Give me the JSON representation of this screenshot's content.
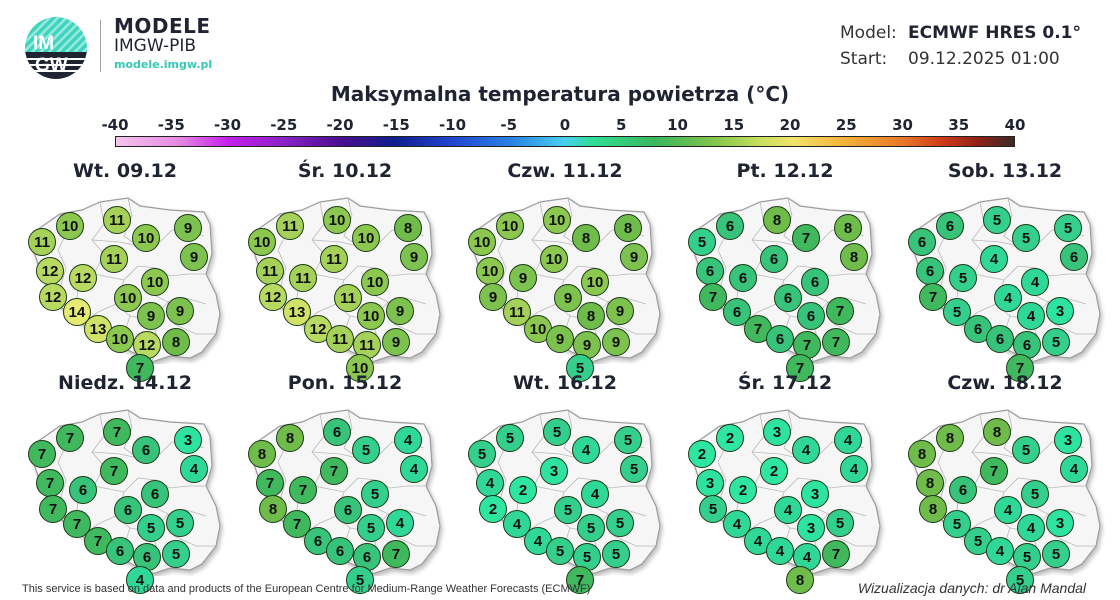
{
  "brand": {
    "logo_text_top": "IM",
    "logo_text_bottom": "GW",
    "title": "MODELE",
    "subtitle": "IMGW-PIB",
    "url": "modele.imgw.pl"
  },
  "meta": {
    "model_label": "Model:",
    "model_value": "ECMWF HRES 0.1°",
    "start_label": "Start:",
    "start_value": "09.12.2025 01:00"
  },
  "title": "Maksymalna temperatura powietrza (°C)",
  "colorbar": {
    "ticks": [
      "-40",
      "-35",
      "-30",
      "-25",
      "-20",
      "-15",
      "-10",
      "-5",
      "0",
      "5",
      "10",
      "15",
      "20",
      "25",
      "30",
      "35",
      "40"
    ],
    "min": -40,
    "max": 40
  },
  "station_positions": [
    [
      22,
      70
    ],
    [
      50,
      54
    ],
    [
      97,
      48
    ],
    [
      126,
      66
    ],
    [
      168,
      56
    ],
    [
      174,
      85
    ],
    [
      30,
      99
    ],
    [
      63,
      106
    ],
    [
      94,
      87
    ],
    [
      135,
      110
    ],
    [
      33,
      125
    ],
    [
      108,
      126
    ],
    [
      57,
      140
    ],
    [
      131,
      144
    ],
    [
      160,
      139
    ],
    [
      78,
      157
    ],
    [
      100,
      167
    ],
    [
      127,
      173
    ],
    [
      156,
      170
    ],
    [
      120,
      196
    ]
  ],
  "panels": [
    {
      "label": "Wt. 09.12",
      "values": [
        11,
        10,
        11,
        10,
        9,
        9,
        12,
        12,
        11,
        10,
        12,
        10,
        14,
        9,
        9,
        13,
        10,
        12,
        8,
        7
      ]
    },
    {
      "label": "Śr. 10.12",
      "values": [
        10,
        11,
        10,
        10,
        8,
        9,
        11,
        11,
        11,
        10,
        12,
        11,
        13,
        10,
        9,
        12,
        11,
        11,
        9,
        10
      ]
    },
    {
      "label": "Czw. 11.12",
      "values": [
        10,
        10,
        10,
        8,
        8,
        9,
        10,
        9,
        10,
        10,
        9,
        9,
        11,
        8,
        9,
        10,
        9,
        9,
        9,
        5
      ]
    },
    {
      "label": "Pt. 12.12",
      "values": [
        5,
        6,
        8,
        7,
        8,
        8,
        6,
        6,
        6,
        6,
        7,
        6,
        6,
        6,
        7,
        7,
        6,
        7,
        7,
        7
      ]
    },
    {
      "label": "Sob. 13.12",
      "values": [
        6,
        6,
        5,
        5,
        5,
        6,
        6,
        5,
        4,
        4,
        7,
        4,
        5,
        4,
        3,
        6,
        6,
        6,
        5,
        7
      ]
    },
    {
      "label": "Niedz. 14.12",
      "values": [
        7,
        7,
        7,
        6,
        3,
        4,
        7,
        6,
        7,
        6,
        7,
        6,
        7,
        5,
        5,
        7,
        6,
        6,
        5,
        4
      ]
    },
    {
      "label": "Pon. 15.12",
      "values": [
        8,
        8,
        6,
        5,
        4,
        4,
        7,
        7,
        7,
        5,
        8,
        6,
        7,
        5,
        4,
        6,
        6,
        6,
        7,
        5
      ]
    },
    {
      "label": "Wt. 16.12",
      "values": [
        5,
        5,
        5,
        4,
        5,
        5,
        4,
        2,
        3,
        4,
        2,
        5,
        4,
        5,
        5,
        4,
        5,
        5,
        5,
        7
      ]
    },
    {
      "label": "Śr. 17.12",
      "values": [
        2,
        2,
        3,
        4,
        4,
        4,
        3,
        2,
        2,
        3,
        5,
        4,
        4,
        3,
        5,
        4,
        4,
        4,
        7,
        8
      ]
    },
    {
      "label": "Czw. 18.12",
      "values": [
        8,
        8,
        8,
        5,
        3,
        4,
        8,
        6,
        7,
        5,
        8,
        4,
        5,
        4,
        3,
        5,
        4,
        5,
        5,
        5
      ]
    }
  ],
  "colors": {
    "t2": "#2ee6a0",
    "t3": "#2ee2a0",
    "t4": "#2fd897",
    "t5": "#34cf8c",
    "t6": "#37c37a",
    "t7": "#3fb85e",
    "t8": "#6fbc4a",
    "t9": "#7dc24e",
    "t10": "#8cc84f",
    "t11": "#a5d158",
    "t12": "#b9da60",
    "t13": "#d0e268",
    "t14": "#e6ea72"
  },
  "footer": {
    "attribution": "This service is based on data and products of the European Centre for Medium-Range Weather Forecasts (ECMWF)",
    "credit": "Wizualizacja danych: dr Alan Mandal"
  },
  "chart_data": {
    "type": "heatmap",
    "title": "Maksymalna temperatura powietrza (°C)",
    "model": "ECMWF HRES 0.1°",
    "start": "09.12.2025 01:00",
    "colorbar_range": [
      -40,
      40
    ],
    "colorbar_ticks": [
      -40,
      -35,
      -30,
      -25,
      -20,
      -15,
      -10,
      -5,
      0,
      5,
      10,
      15,
      20,
      25,
      30,
      35,
      40
    ],
    "days": [
      "Wt. 09.12",
      "Śr. 10.12",
      "Czw. 11.12",
      "Pt. 12.12",
      "Sob. 13.12",
      "Niedz. 14.12",
      "Pon. 15.12",
      "Wt. 16.12",
      "Śr. 17.12",
      "Czw. 18.12"
    ],
    "series": [
      {
        "name": "Wt. 09.12",
        "values": [
          11,
          10,
          11,
          10,
          9,
          9,
          12,
          12,
          11,
          10,
          12,
          10,
          14,
          9,
          9,
          13,
          10,
          12,
          8,
          7
        ]
      },
      {
        "name": "Śr. 10.12",
        "values": [
          10,
          11,
          10,
          10,
          8,
          9,
          11,
          11,
          11,
          10,
          12,
          11,
          13,
          10,
          9,
          12,
          11,
          11,
          9,
          10
        ]
      },
      {
        "name": "Czw. 11.12",
        "values": [
          10,
          10,
          10,
          8,
          8,
          9,
          10,
          9,
          10,
          10,
          9,
          9,
          11,
          8,
          9,
          10,
          9,
          9,
          9,
          5
        ]
      },
      {
        "name": "Pt. 12.12",
        "values": [
          5,
          6,
          8,
          7,
          8,
          8,
          6,
          6,
          6,
          6,
          7,
          6,
          6,
          6,
          7,
          7,
          6,
          7,
          7,
          7
        ]
      },
      {
        "name": "Sob. 13.12",
        "values": [
          6,
          6,
          5,
          5,
          5,
          6,
          6,
          5,
          4,
          4,
          7,
          4,
          5,
          4,
          3,
          6,
          6,
          6,
          5,
          7
        ]
      },
      {
        "name": "Niedz. 14.12",
        "values": [
          7,
          7,
          7,
          6,
          3,
          4,
          7,
          6,
          7,
          6,
          7,
          6,
          7,
          5,
          5,
          7,
          6,
          6,
          5,
          4
        ]
      },
      {
        "name": "Pon. 15.12",
        "values": [
          8,
          8,
          6,
          5,
          4,
          4,
          7,
          7,
          7,
          5,
          8,
          6,
          7,
          5,
          4,
          6,
          6,
          6,
          7,
          5
        ]
      },
      {
        "name": "Wt. 16.12",
        "values": [
          5,
          5,
          5,
          4,
          5,
          5,
          4,
          2,
          3,
          4,
          2,
          5,
          4,
          5,
          5,
          4,
          5,
          5,
          5,
          7
        ]
      },
      {
        "name": "Śr. 17.12",
        "values": [
          2,
          2,
          3,
          4,
          4,
          4,
          3,
          2,
          2,
          3,
          5,
          4,
          4,
          3,
          5,
          4,
          4,
          4,
          7,
          8
        ]
      },
      {
        "name": "Czw. 18.12",
        "values": [
          8,
          8,
          8,
          5,
          3,
          4,
          8,
          6,
          7,
          5,
          8,
          4,
          5,
          4,
          3,
          5,
          4,
          5,
          5,
          5
        ]
      }
    ]
  }
}
